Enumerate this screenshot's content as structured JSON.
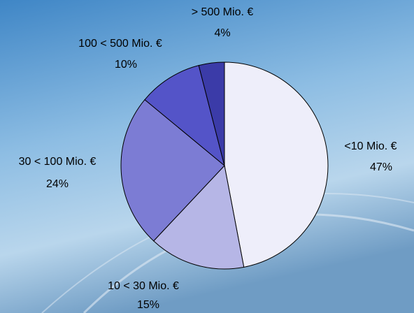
{
  "chart_data": {
    "type": "pie",
    "categories": [
      "<10 Mio. €",
      "10 < 30 Mio. €",
      "30 < 100 Mio. €",
      "100 < 500 Mio. €",
      "> 500 Mio. €"
    ],
    "values": [
      47,
      15,
      24,
      10,
      4
    ],
    "value_labels": [
      "47%",
      "15%",
      "24%",
      "10%",
      "4%"
    ],
    "colors": [
      "#eeeefa",
      "#b6b6e6",
      "#7c7cd4",
      "#5454c8",
      "#3b3ba8"
    ]
  }
}
